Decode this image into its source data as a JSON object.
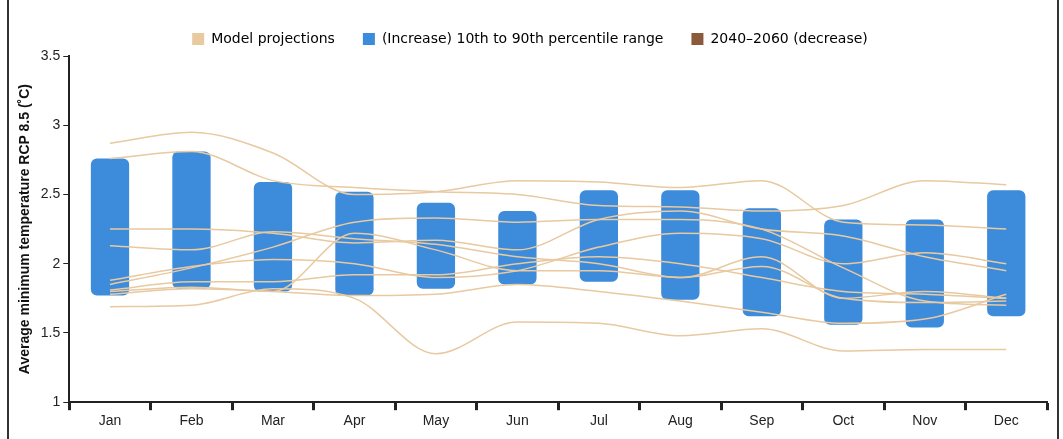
{
  "chart_data": {
    "type": "bar",
    "ylabel": "Average minimum temperature RCP 8.5 (˚C)",
    "categories": [
      "Jan",
      "Feb",
      "Mar",
      "Apr",
      "May",
      "Jun",
      "Jul",
      "Aug",
      "Sep",
      "Oct",
      "Nov",
      "Dec"
    ],
    "ylim": [
      1,
      3.5
    ],
    "yticks": [
      1,
      1.5,
      2,
      2.5,
      3,
      3.5
    ],
    "grid": false,
    "legend": "top",
    "series": [
      {
        "type": "line",
        "name": "Model projections",
        "color": "#e8c9a0",
        "values": [
          2.87,
          2.95,
          2.8,
          2.5,
          2.52,
          2.6,
          2.59,
          2.55,
          2.6,
          2.3,
          2.28,
          2.25
        ]
      },
      {
        "type": "line",
        "color": "#e8c9a0",
        "values": [
          2.76,
          2.81,
          2.6,
          2.55,
          2.52,
          2.5,
          2.42,
          2.41,
          2.38,
          2.42,
          2.6,
          2.57
        ]
      },
      {
        "type": "line",
        "color": "#e8c9a0",
        "values": [
          2.25,
          2.25,
          2.22,
          2.15,
          2.17,
          2.1,
          2.32,
          2.38,
          2.25,
          2.2,
          2.05,
          1.95
        ]
      },
      {
        "type": "line",
        "color": "#e8c9a0",
        "values": [
          2.13,
          2.1,
          2.23,
          2.18,
          2.14,
          2.05,
          2,
          1.9,
          2.05,
          1.75,
          1.8,
          1.75
        ]
      },
      {
        "type": "line",
        "color": "#e8c9a0",
        "values": [
          1.88,
          1.98,
          2.03,
          2,
          1.9,
          1.95,
          2.12,
          2.22,
          2.18,
          2,
          2.08,
          2
        ]
      },
      {
        "type": "line",
        "color": "#e8c9a0",
        "values": [
          1.85,
          1.97,
          2.12,
          2.3,
          2.33,
          2.3,
          2.32,
          2.32,
          2.25,
          1.97,
          1.73,
          1.7
        ]
      },
      {
        "type": "line",
        "color": "#e8c9a0",
        "values": [
          1.81,
          1.87,
          1.87,
          1.92,
          1.92,
          2,
          2.05,
          2,
          1.9,
          1.8,
          1.78,
          1.75
        ]
      },
      {
        "type": "line",
        "color": "#e8c9a0",
        "values": [
          1.78,
          1.82,
          1.8,
          1.77,
          1.78,
          1.85,
          1.8,
          1.73,
          1.65,
          1.57,
          1.6,
          1.78
        ]
      },
      {
        "type": "line",
        "color": "#e8c9a0",
        "values": [
          1.69,
          1.7,
          1.82,
          1.75,
          1.35,
          1.58,
          1.57,
          1.48,
          1.53,
          1.37,
          1.38,
          1.38
        ]
      },
      {
        "type": "line",
        "color": "#e8c9a0",
        "values": [
          1.8,
          1.83,
          1.8,
          2.22,
          2.1,
          1.95,
          1.95,
          1.9,
          1.98,
          1.75,
          1.72,
          1.73
        ]
      },
      {
        "name": "(Increase) 10th to 90th percentile range",
        "color": "#3d8bdb",
        "base": [
          1.77,
          1.82,
          1.8,
          1.77,
          1.82,
          1.85,
          1.87,
          1.74,
          1.62,
          1.56,
          1.54,
          1.62
        ],
        "values": [
          0.99,
          0.99,
          0.79,
          0.75,
          0.62,
          0.53,
          0.66,
          0.79,
          0.78,
          0.76,
          0.78,
          0.91
        ]
      },
      {
        "type": "bar",
        "name": "2040–2060 (decrease)",
        "color": "#8b5a3c",
        "values": [
          null,
          null,
          null,
          null,
          null,
          null,
          null,
          null,
          null,
          null,
          null,
          null
        ]
      }
    ]
  }
}
